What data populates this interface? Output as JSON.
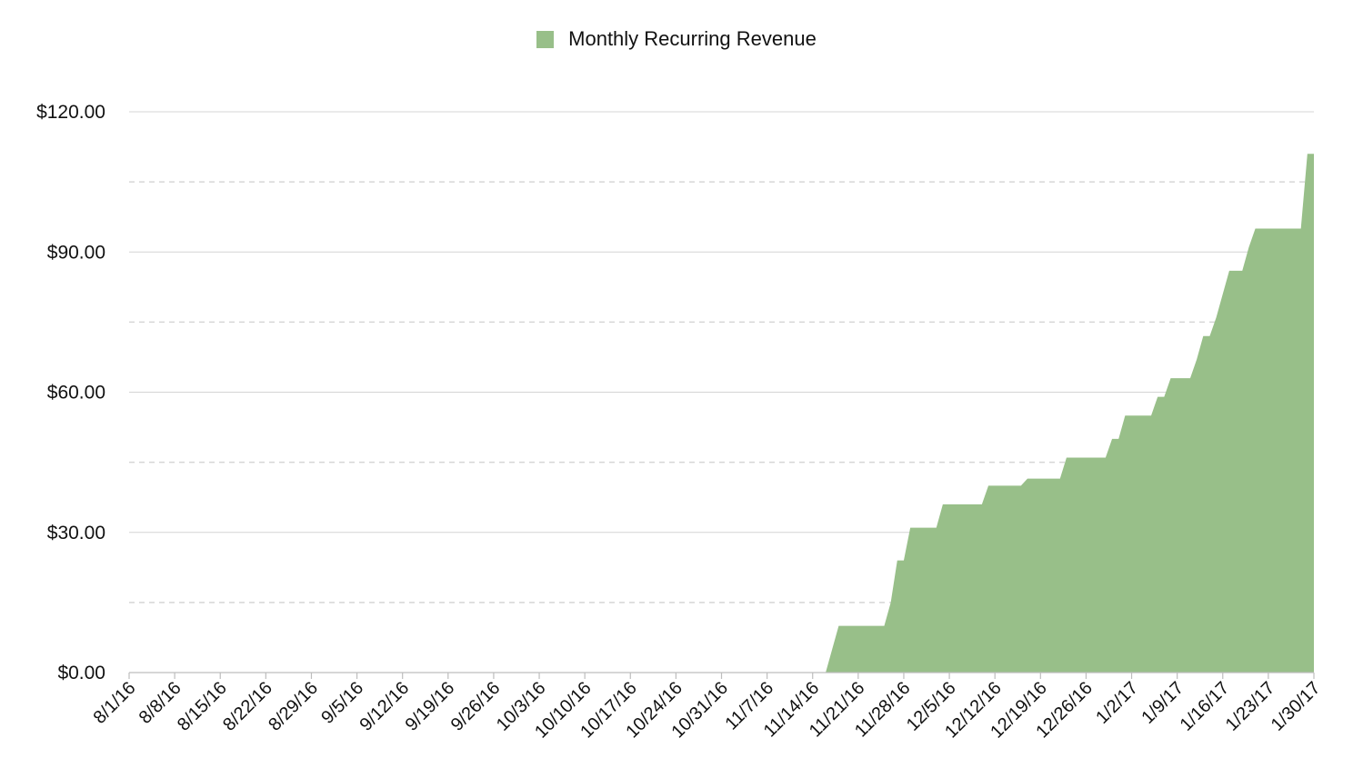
{
  "chart_data": {
    "type": "area",
    "title": "",
    "xlabel": "",
    "ylabel": "",
    "ylim": [
      0,
      120
    ],
    "y_ticks": [
      "$0.00",
      "$30.00",
      "$60.00",
      "$90.00",
      "$120.00"
    ],
    "y_tick_values": [
      0,
      30,
      60,
      90,
      120
    ],
    "y_minor_grid_values": [
      15,
      45,
      75,
      105
    ],
    "x_tick_labels": [
      "8/1/16",
      "8/8/16",
      "8/15/16",
      "8/22/16",
      "8/29/16",
      "9/5/16",
      "9/12/16",
      "9/19/16",
      "9/26/16",
      "10/3/16",
      "10/10/16",
      "10/17/16",
      "10/24/16",
      "10/31/16",
      "11/7/16",
      "11/14/16",
      "11/21/16",
      "11/28/16",
      "12/5/16",
      "12/12/16",
      "12/19/16",
      "12/26/16",
      "1/2/17",
      "1/9/17",
      "1/16/17",
      "1/23/17",
      "1/30/17"
    ],
    "x_range": [
      "2016-08-01",
      "2017-01-30"
    ],
    "legend": {
      "position": "top-center",
      "entries": [
        "Monthly Recurring Revenue"
      ]
    },
    "grid": true,
    "series": [
      {
        "name": "Monthly Recurring Revenue",
        "color": "#98bf89",
        "points": [
          [
            "2016-08-01",
            0
          ],
          [
            "2016-11-15",
            0
          ],
          [
            "2016-11-16",
            0
          ],
          [
            "2016-11-18",
            10
          ],
          [
            "2016-11-25",
            10
          ],
          [
            "2016-11-26",
            15
          ],
          [
            "2016-11-27",
            24
          ],
          [
            "2016-11-28",
            24
          ],
          [
            "2016-11-29",
            31
          ],
          [
            "2016-12-03",
            31
          ],
          [
            "2016-12-04",
            36
          ],
          [
            "2016-12-10",
            36
          ],
          [
            "2016-12-11",
            40
          ],
          [
            "2016-12-16",
            40
          ],
          [
            "2016-12-17",
            41.5
          ],
          [
            "2016-12-22",
            41.5
          ],
          [
            "2016-12-23",
            46
          ],
          [
            "2016-12-29",
            46
          ],
          [
            "2016-12-30",
            50
          ],
          [
            "2016-12-31",
            50
          ],
          [
            "2017-01-01",
            55
          ],
          [
            "2017-01-05",
            55
          ],
          [
            "2017-01-06",
            59
          ],
          [
            "2017-01-07",
            59
          ],
          [
            "2017-01-08",
            63
          ],
          [
            "2017-01-11",
            63
          ],
          [
            "2017-01-12",
            67
          ],
          [
            "2017-01-13",
            72
          ],
          [
            "2017-01-14",
            72
          ],
          [
            "2017-01-15",
            76
          ],
          [
            "2017-01-16",
            81
          ],
          [
            "2017-01-17",
            86
          ],
          [
            "2017-01-19",
            86
          ],
          [
            "2017-01-20",
            91
          ],
          [
            "2017-01-21",
            95
          ],
          [
            "2017-01-28",
            95
          ],
          [
            "2017-01-29",
            111
          ],
          [
            "2017-01-30",
            111
          ]
        ]
      }
    ]
  }
}
